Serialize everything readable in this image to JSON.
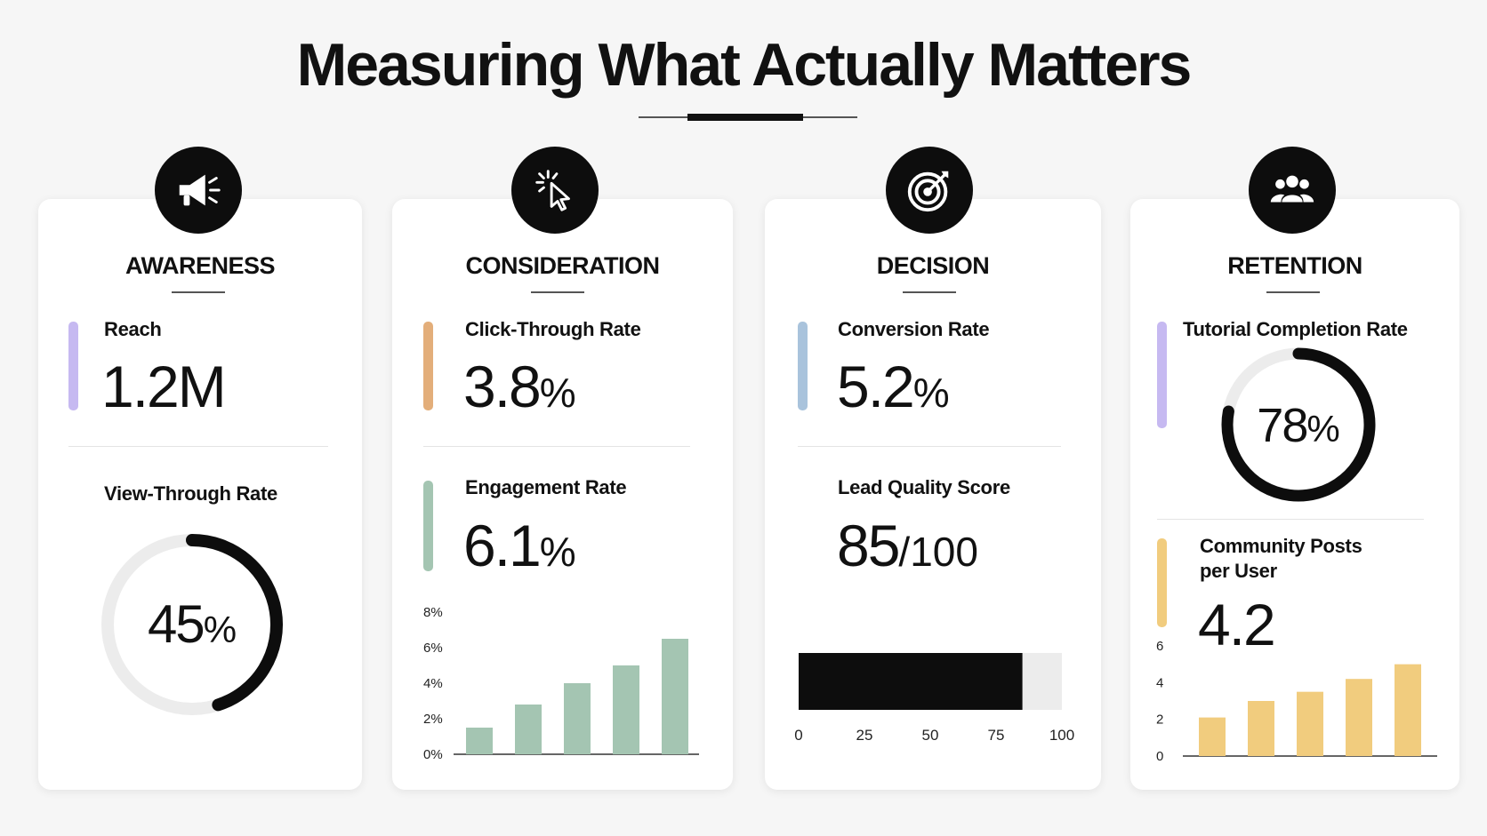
{
  "title": "Measuring What Actually Matters",
  "colors": {
    "purple": "#c6b9f1",
    "orange": "#e3ae7a",
    "blue": "#a9c3dc",
    "green": "#a4c5b2",
    "yellow": "#f1cc7e",
    "dark": "#0d0d0d",
    "track": "#ececec"
  },
  "stages": {
    "awareness": {
      "title": "AWARENESS",
      "icon": "megaphone-icon",
      "reach": {
        "label": "Reach",
        "value": "1.2M"
      },
      "view_through": {
        "label": "View-Through Rate",
        "value": "45",
        "unit": "%"
      }
    },
    "consideration": {
      "title": "CONSIDERATION",
      "icon": "cursor-click-icon",
      "ctr": {
        "label": "Click-Through Rate",
        "value": "3.8",
        "unit": "%"
      },
      "engagement": {
        "label": "Engagement Rate",
        "value": "6.1",
        "unit": "%"
      }
    },
    "decision": {
      "title": "DECISION",
      "icon": "target-icon",
      "conversion": {
        "label": "Conversion Rate",
        "value": "5.2",
        "unit": "%"
      },
      "lead_quality": {
        "label": "Lead Quality Score",
        "value": "85",
        "unit": "/100"
      }
    },
    "retention": {
      "title": "RETENTION",
      "icon": "users-icon",
      "tutorial": {
        "label": "Tutorial Completion Rate",
        "value": "78",
        "unit": "%"
      },
      "community": {
        "label_line1": "Community Posts",
        "label_line2": "per User",
        "value": "4.2"
      }
    }
  },
  "chart_data": [
    {
      "type": "pie",
      "title": "View-Through Rate",
      "values": [
        45,
        55
      ],
      "center_label": "45%"
    },
    {
      "type": "bar",
      "title": "Engagement Rate",
      "categories": [
        "",
        "",
        "",
        "",
        ""
      ],
      "values": [
        1.5,
        2.8,
        4.0,
        5.0,
        6.5
      ],
      "yticks": [
        "0%",
        "2%",
        "4%",
        "6%",
        "8%"
      ],
      "ylim": [
        0,
        8
      ],
      "grid": false
    },
    {
      "type": "bar",
      "title": "Lead Quality Score",
      "orientation": "horizontal",
      "values": [
        85
      ],
      "xticks": [
        "0",
        "25",
        "50",
        "75",
        "100"
      ],
      "xlim": [
        0,
        100
      ]
    },
    {
      "type": "pie",
      "title": "Tutorial Completion Rate",
      "values": [
        78,
        22
      ],
      "center_label": "78%"
    },
    {
      "type": "bar",
      "title": "Community Posts per User",
      "categories": [
        "",
        "",
        "",
        "",
        ""
      ],
      "values": [
        2.1,
        3.0,
        3.5,
        4.2,
        5.0
      ],
      "yticks": [
        "0",
        "2",
        "4",
        "6"
      ],
      "ylim": [
        0,
        6
      ],
      "grid": false
    }
  ]
}
